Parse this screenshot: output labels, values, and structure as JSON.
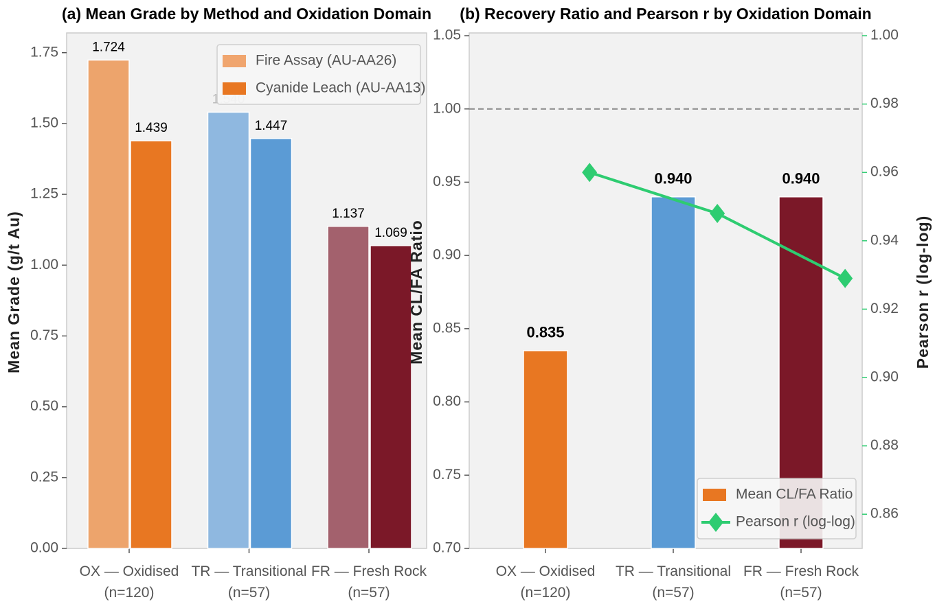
{
  "chart_data": [
    {
      "type": "bar",
      "title": "(a) Mean Grade by Method and Oxidation Domain",
      "ylabel": "Mean Grade (g/t Au)",
      "categories": [
        "OX — Oxidised\n(n=120)",
        "TR — Transitional\n(n=57)",
        "FR — Fresh Rock\n(n=57)"
      ],
      "series": [
        {
          "name": "Fire Assay (AU-AA26)",
          "color": "#f0a56e",
          "bar_colors": [
            "#eda46c",
            "#8fb8e0",
            "#a3616d"
          ],
          "values": [
            1.724,
            1.54,
            1.137
          ],
          "value_labels": [
            "1.724",
            "1.540",
            "1.137"
          ]
        },
        {
          "name": "Cyanide Leach (AU-AA13)",
          "color": "#e87722",
          "bar_colors": [
            "#e87722",
            "#5b9bd5",
            "#7b1828"
          ],
          "values": [
            1.439,
            1.447,
            1.069
          ],
          "value_labels": [
            "1.439",
            "1.447",
            "1.069"
          ]
        }
      ],
      "ylim": [
        0,
        1.81
      ],
      "yticks": [
        {
          "value": 0,
          "label": "0.00"
        },
        0.25,
        {
          "value": 0.5,
          "label": "0.50"
        },
        0.75,
        {
          "value": 1,
          "label": "1.00"
        },
        1.25,
        {
          "value": 1.5,
          "label": "1.50"
        },
        1.75
      ],
      "legend": "upper right"
    },
    {
      "type": "bar_line",
      "title": "(b) Recovery Ratio and Pearson r by Oxidation Domain",
      "ylabel": "Mean CL/FA Ratio",
      "y2label": "Pearson r (log-log)",
      "categories": [
        "OX — Oxidised\n(n=120)",
        "TR — Transitional\n(n=57)",
        "FR — Fresh Rock\n(n=57)"
      ],
      "series": [
        {
          "name": "Mean CL/FA Ratio",
          "color": "#e87722",
          "bar_colors": [
            "#e87722",
            "#5b9bd5",
            "#7b1828"
          ],
          "values": [
            0.835,
            0.94,
            0.94
          ],
          "value_labels": [
            "0.835",
            "0.940",
            "0.940"
          ]
        },
        {
          "name": "Pearson r (log-log)",
          "color": "#2ecc71",
          "axis": "y2",
          "values": [
            0.96,
            0.948,
            0.929
          ]
        }
      ],
      "hline": 1,
      "ylim": [
        0.7,
        1.05
      ],
      "yticks": [
        {
          "value": 0.7,
          "label": "0.70"
        },
        0.75,
        {
          "value": 0.8,
          "label": "0.80"
        },
        0.85,
        {
          "value": 0.9,
          "label": "0.90"
        },
        0.95,
        {
          "value": 1,
          "label": "1.00"
        },
        1.05
      ],
      "y2lim": [
        0.85,
        1.0
      ],
      "y2ticks": [
        0.86,
        0.88,
        {
          "value": 0.9,
          "label": "0.90"
        },
        0.92,
        0.94,
        0.96,
        0.98,
        {
          "value": 1,
          "label": "1.00"
        }
      ],
      "legend": "lower right"
    }
  ]
}
